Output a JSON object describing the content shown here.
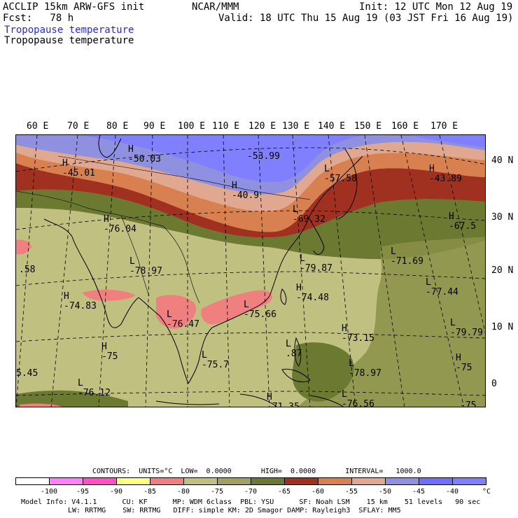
{
  "header": {
    "model_line": "ACCLIP 15km ARW-GFS init",
    "center": "NCAR/MMM",
    "init_line": "Init: 12 UTC Mon 12 Aug 19",
    "fcst_line": "Fcst:   78 h",
    "valid_line": "Valid: 18 UTC Thu 15 Aug 19 (03 JST Fri 16 Aug 19)",
    "field_title_1": "Tropopause temperature",
    "field_title_2": "Tropopause temperature"
  },
  "map": {
    "lon_labels": [
      "60 E",
      "70 E",
      "80 E",
      "90 E",
      "100 E",
      "110 E",
      "120 E",
      "130 E",
      "140 E",
      "150 E",
      "160 E",
      "170 E"
    ],
    "lat_labels": [
      "40 N",
      "30 N",
      "20 N",
      "10 N",
      "0"
    ],
    "annotations": [
      {
        "marker": "H",
        "value": "-45.01"
      },
      {
        "marker": "H",
        "value": "-50.03"
      },
      {
        "marker": "",
        "value": "-53.99"
      },
      {
        "marker": "H",
        "value": "-40.9"
      },
      {
        "marker": "L",
        "value": "-57.58"
      },
      {
        "marker": "H",
        "value": "-43.89"
      },
      {
        "marker": "H",
        "value": "-76.04"
      },
      {
        "marker": "L",
        "value": "-69.32"
      },
      {
        "marker": "H",
        "value": "-67.5"
      },
      {
        "marker": "",
        "value": ".58"
      },
      {
        "marker": "L",
        "value": "-78.97"
      },
      {
        "marker": "L",
        "value": "-79.87"
      },
      {
        "marker": "L",
        "value": "-71.69"
      },
      {
        "marker": "L",
        "value": "-77.44"
      },
      {
        "marker": "H",
        "value": "-74.83"
      },
      {
        "marker": "H",
        "value": "-74.48"
      },
      {
        "marker": "L",
        "value": "-75.66"
      },
      {
        "marker": "L",
        "value": "-76.47"
      },
      {
        "marker": "L",
        "value": "-79.79"
      },
      {
        "marker": "H",
        "value": "-73.15"
      },
      {
        "marker": "H",
        "value": "-75"
      },
      {
        "marker": "L",
        "value": ".87"
      },
      {
        "marker": "L",
        "value": "-75.7"
      },
      {
        "marker": "L",
        "value": "-78.97"
      },
      {
        "marker": "H",
        "value": "-75"
      },
      {
        "marker": "",
        "value": "5.45"
      },
      {
        "marker": "L",
        "value": "-76.12"
      },
      {
        "marker": "L",
        "value": "-76.56"
      },
      {
        "marker": "H",
        "value": "-71.35"
      },
      {
        "marker": "",
        "value": "-75"
      }
    ]
  },
  "colorbar": {
    "contours_line": "CONTOURS:  UNITS=°C  LOW=  0.0000       HIGH=  0.0000       INTERVAL=   1000.0",
    "unit": "°C",
    "colors": [
      "#ffffff",
      "#ff80ff",
      "#ff50c8",
      "#ffff80",
      "#f08080",
      "#c0c080",
      "#a0a060",
      "#6b7a30",
      "#a03020",
      "#d88050",
      "#e0a890",
      "#9090e0",
      "#7070ff",
      "#8080ff"
    ],
    "ticks": [
      "-100",
      "-95",
      "-90",
      "-85",
      "-80",
      "-75",
      "-70",
      "-65",
      "-60",
      "-55",
      "-50",
      "-45",
      "-40"
    ]
  },
  "footer": {
    "line1": "Model Info: V4.1.1      CU: KF      MP: WDM 6class  PBL: YSU      SF: Noah LSM    15 km    51 levels   90 sec",
    "line2": "LW: RRTMG    SW: RRTMG   DIFF: simple KM: 2D Smagor DAMP: Rayleigh3  SFLAY: MM5"
  }
}
